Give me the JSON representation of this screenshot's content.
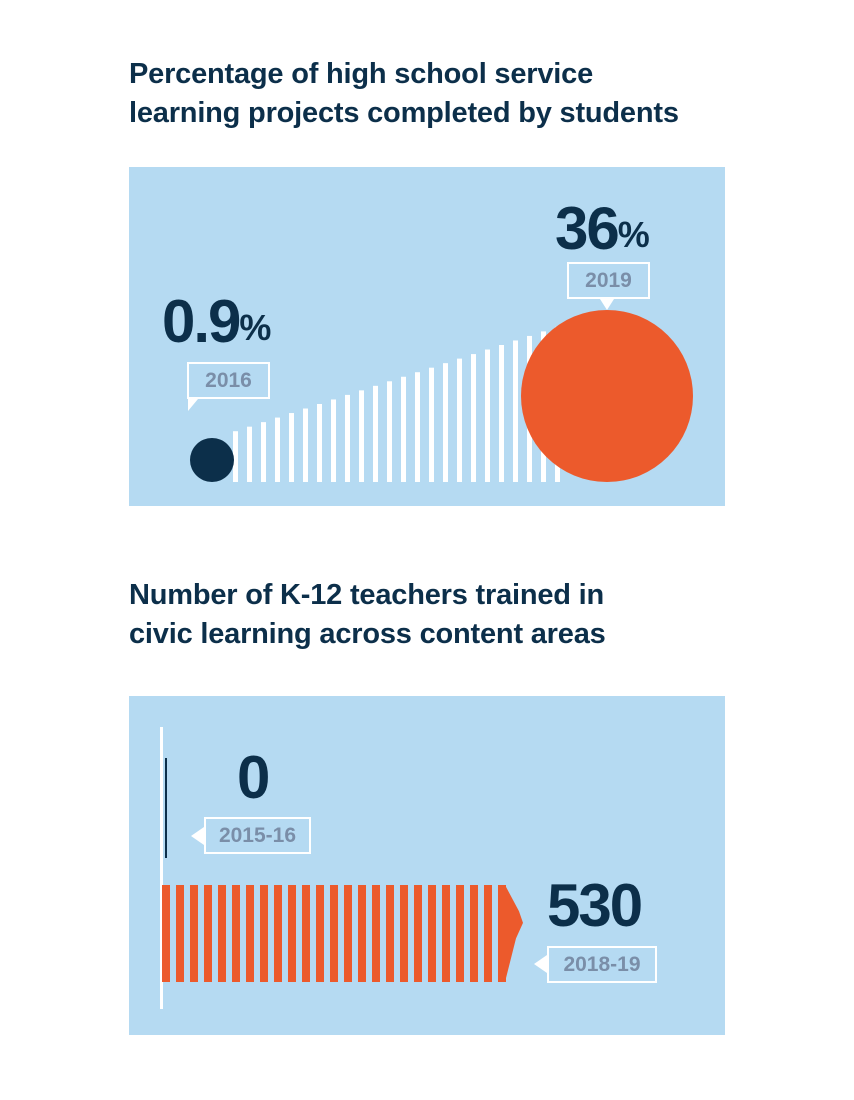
{
  "chart_data": [
    {
      "type": "scatter",
      "title_lines": [
        "Percentage of high school service",
        "learning projects completed by students"
      ],
      "unit_symbol": "%",
      "points": [
        {
          "label": "2016",
          "value": 0.9,
          "value_text": "0.9"
        },
        {
          "label": "2019",
          "value": 36,
          "value_text": "36"
        }
      ],
      "colors": {
        "panel": "#b5daf2",
        "start": "#0c2f4a",
        "end": "#ec5a2c",
        "stripes": "#ffffff",
        "text": "#0c2f4a",
        "tag_text": "#7a8ea8"
      }
    },
    {
      "type": "bar",
      "title_lines": [
        "Number of K-12 teachers trained in",
        "civic learning across content areas"
      ],
      "categories": [
        "2015-16",
        "2018-19"
      ],
      "values": [
        0,
        530
      ],
      "value_texts": [
        "0",
        "530"
      ],
      "colors": {
        "panel": "#b5daf2",
        "bar": "#ec5a2c",
        "stripes": "#ffffff",
        "axis": "#ffffff",
        "zero_bar": "#0c2f4a"
      }
    }
  ]
}
